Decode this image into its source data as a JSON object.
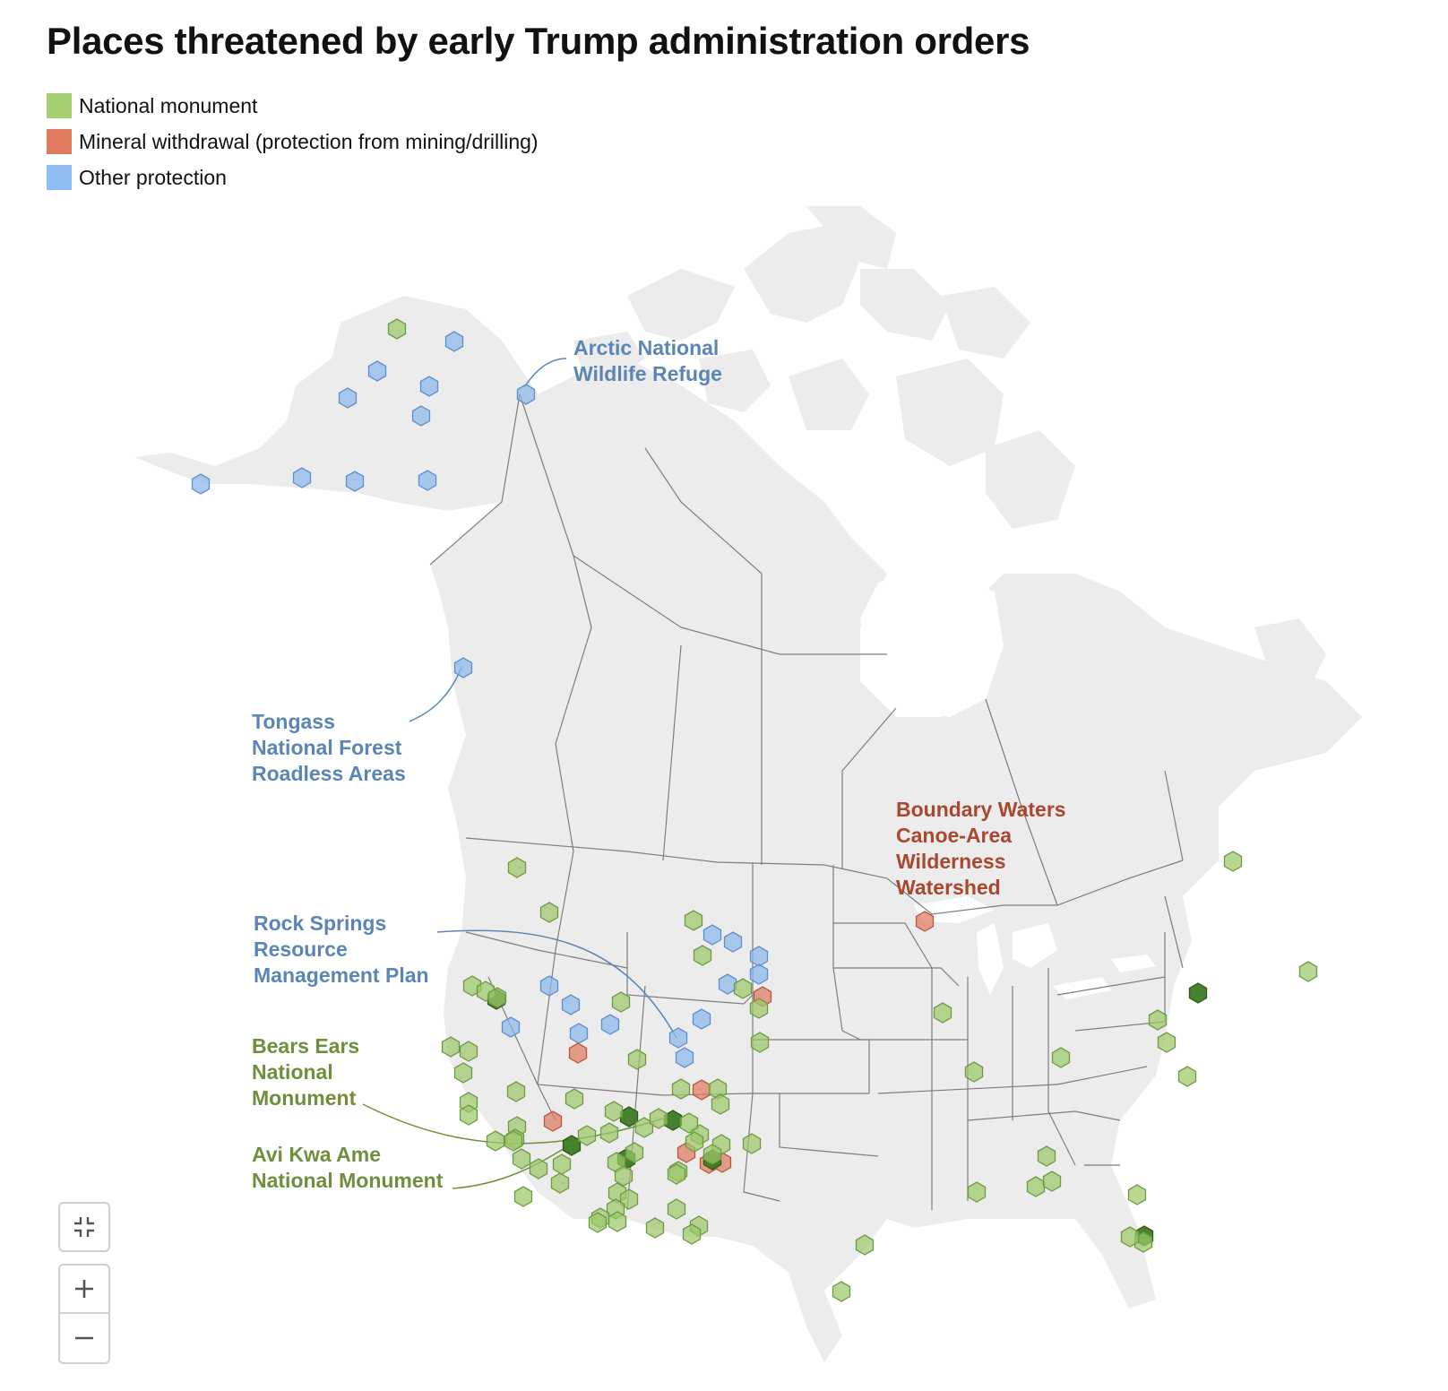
{
  "title": "Places threatened by early Trump administration orders",
  "colors": {
    "national_monument": "#a6cf74",
    "mineral_withdrawal": "#e07a5f",
    "other_protection": "#8fbdf2",
    "land": "#ececec",
    "border": "#7d7d7d",
    "label_blue": "#5b85b5",
    "label_green": "#6f8f3d",
    "label_red": "#a9472f"
  },
  "legend": [
    {
      "label": "National monument",
      "color": "#a6cf74"
    },
    {
      "label": "Mineral withdrawal (protection from mining/drilling)",
      "color": "#e07a5f"
    },
    {
      "label": "Other protection",
      "color": "#8fbdf2"
    }
  ],
  "annotations": {
    "arctic": [
      "Arctic National",
      "Wildlife Refuge"
    ],
    "tongass": [
      "Tongass",
      "National Forest",
      "Roadless Areas"
    ],
    "boundary": [
      "Boundary Waters",
      "Canoe-Area",
      "Wilderness",
      "Watershed"
    ],
    "rock": [
      "Rock Springs",
      "Resource",
      "Management Plan"
    ],
    "bears": [
      "Bears Ears",
      "National",
      "Monument"
    ],
    "avi": [
      "Avi Kwa Ame",
      "National Monument"
    ]
  },
  "controls": {
    "reset": "reset-zoom",
    "zoom_in": "+",
    "zoom_out": "−"
  }
}
